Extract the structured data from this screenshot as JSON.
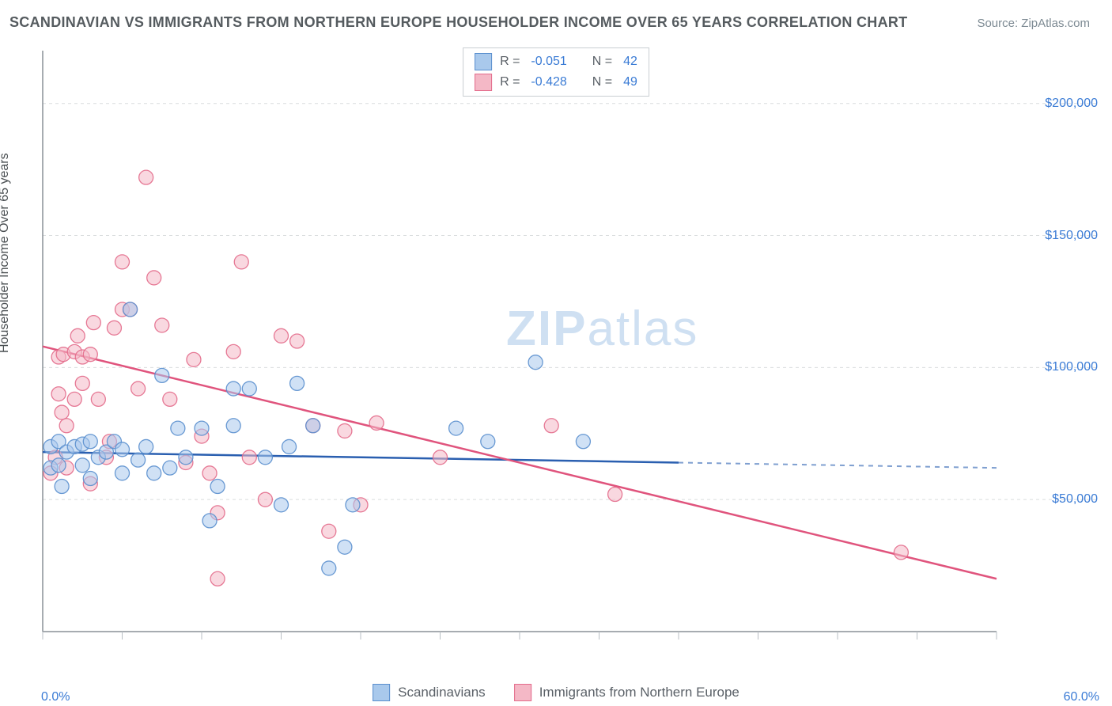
{
  "title": "SCANDINAVIAN VS IMMIGRANTS FROM NORTHERN EUROPE HOUSEHOLDER INCOME OVER 65 YEARS CORRELATION CHART",
  "source": "Source: ZipAtlas.com",
  "ylabel": "Householder Income Over 65 years",
  "watermark_bold": "ZIP",
  "watermark_light": "atlas",
  "chart": {
    "type": "scatter",
    "xlim": [
      0,
      60
    ],
    "ylim": [
      0,
      220000
    ],
    "y_gridlines": [
      50000,
      100000,
      150000,
      200000
    ],
    "y_gridline_labels": [
      "$50,000",
      "$100,000",
      "$150,000",
      "$200,000"
    ],
    "x_minor_ticks": [
      0,
      5,
      10,
      15,
      20,
      25,
      30,
      35,
      40,
      45,
      50,
      55,
      60
    ],
    "x_min_label": "0.0%",
    "x_max_label": "60.0%",
    "background_color": "#ffffff",
    "grid_color": "#d9dcde",
    "axis_color": "#8a9197",
    "minor_tick_color": "#b9bfc4"
  },
  "series": [
    {
      "name": "Scandinavians",
      "fill": "#a9c9ec",
      "stroke": "#5a8fce",
      "stroke_opacity": 0.9,
      "fill_opacity": 0.55,
      "line_color": "#2a5fb0",
      "R": "-0.051",
      "N": "42",
      "trend": {
        "x1": 0,
        "y1": 68000,
        "x2": 40,
        "y2": 64000,
        "extend_to": 60,
        "dash_after": 40
      },
      "points": [
        [
          0.5,
          62000
        ],
        [
          0.5,
          70000
        ],
        [
          1,
          72000
        ],
        [
          1,
          63000
        ],
        [
          1.2,
          55000
        ],
        [
          1.5,
          68000
        ],
        [
          2,
          70000
        ],
        [
          2.5,
          71000
        ],
        [
          2.5,
          63000
        ],
        [
          3,
          58000
        ],
        [
          3,
          72000
        ],
        [
          3.5,
          66000
        ],
        [
          4,
          68000
        ],
        [
          4.5,
          72000
        ],
        [
          5,
          69000
        ],
        [
          5,
          60000
        ],
        [
          5.5,
          122000
        ],
        [
          6,
          65000
        ],
        [
          6.5,
          70000
        ],
        [
          7,
          60000
        ],
        [
          7.5,
          97000
        ],
        [
          8,
          62000
        ],
        [
          8.5,
          77000
        ],
        [
          9,
          66000
        ],
        [
          10,
          77000
        ],
        [
          10.5,
          42000
        ],
        [
          11,
          55000
        ],
        [
          12,
          78000
        ],
        [
          12,
          92000
        ],
        [
          13,
          92000
        ],
        [
          14,
          66000
        ],
        [
          15,
          48000
        ],
        [
          15.5,
          70000
        ],
        [
          16,
          94000
        ],
        [
          17,
          78000
        ],
        [
          18,
          24000
        ],
        [
          19,
          32000
        ],
        [
          19.5,
          48000
        ],
        [
          26,
          77000
        ],
        [
          28,
          72000
        ],
        [
          31,
          102000
        ],
        [
          34,
          72000
        ]
      ]
    },
    {
      "name": "Immigants from Northern Europe",
      "display_name": "Immigrants from Northern Europe",
      "fill": "#f4b8c6",
      "stroke": "#e36b8b",
      "stroke_opacity": 0.9,
      "fill_opacity": 0.55,
      "line_color": "#e0547d",
      "R": "-0.428",
      "N": "49",
      "trend": {
        "x1": 0,
        "y1": 108000,
        "x2": 60,
        "y2": 20000
      },
      "points": [
        [
          0.5,
          60000
        ],
        [
          0.8,
          66000
        ],
        [
          1,
          90000
        ],
        [
          1,
          104000
        ],
        [
          1.2,
          83000
        ],
        [
          1.3,
          105000
        ],
        [
          1.5,
          62000
        ],
        [
          1.5,
          78000
        ],
        [
          2,
          88000
        ],
        [
          2,
          106000
        ],
        [
          2.2,
          112000
        ],
        [
          2.5,
          104000
        ],
        [
          2.5,
          94000
        ],
        [
          3,
          56000
        ],
        [
          3,
          105000
        ],
        [
          3.2,
          117000
        ],
        [
          3.5,
          88000
        ],
        [
          4,
          66000
        ],
        [
          4.2,
          72000
        ],
        [
          4.5,
          115000
        ],
        [
          5,
          140000
        ],
        [
          5,
          122000
        ],
        [
          5.5,
          122000
        ],
        [
          6,
          92000
        ],
        [
          6.5,
          172000
        ],
        [
          7,
          134000
        ],
        [
          7.5,
          116000
        ],
        [
          8,
          88000
        ],
        [
          9,
          64000
        ],
        [
          9.5,
          103000
        ],
        [
          10,
          74000
        ],
        [
          10.5,
          60000
        ],
        [
          11,
          45000
        ],
        [
          11,
          20000
        ],
        [
          12,
          106000
        ],
        [
          12.5,
          140000
        ],
        [
          13,
          66000
        ],
        [
          14,
          50000
        ],
        [
          15,
          112000
        ],
        [
          16,
          110000
        ],
        [
          17,
          78000
        ],
        [
          18,
          38000
        ],
        [
          19,
          76000
        ],
        [
          21,
          79000
        ],
        [
          25,
          66000
        ],
        [
          32,
          78000
        ],
        [
          36,
          52000
        ],
        [
          54,
          30000
        ],
        [
          20,
          48000
        ]
      ]
    }
  ],
  "legend_labels": {
    "R": "R =",
    "N": "N ="
  }
}
